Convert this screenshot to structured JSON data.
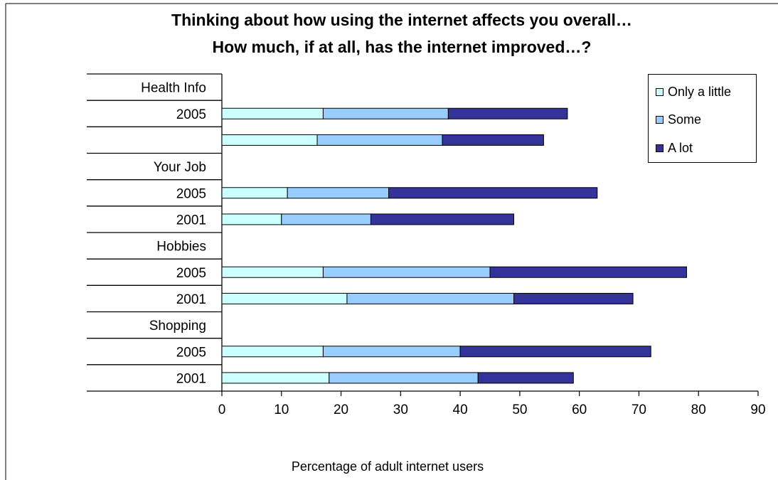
{
  "chart_data": {
    "type": "bar",
    "orientation": "horizontal",
    "stacked": true,
    "title": "Thinking about how using the internet affects you overall…",
    "subtitle": "How much, if at all, has the internet improved…?",
    "xlabel": "Percentage of adult internet users",
    "xlim": [
      0,
      90
    ],
    "xticks": [
      0,
      10,
      20,
      30,
      40,
      50,
      60,
      70,
      80,
      90
    ],
    "grid": false,
    "legend_position": "top-right",
    "row_labels": [
      "Health Info",
      "2005",
      "",
      "Your Job",
      "2005",
      "2001",
      "Hobbies",
      "2005",
      "2001",
      "Shopping",
      "2005",
      "2001"
    ],
    "series": [
      {
        "name": "Only a little",
        "color": "#ccffff",
        "values": [
          null,
          17,
          16,
          null,
          11,
          10,
          null,
          17,
          21,
          null,
          17,
          18
        ]
      },
      {
        "name": "Some",
        "color": "#99ccff",
        "values": [
          null,
          21,
          21,
          null,
          17,
          15,
          null,
          28,
          28,
          null,
          23,
          25
        ]
      },
      {
        "name": "A lot",
        "color": "#333399",
        "values": [
          null,
          20,
          17,
          null,
          35,
          24,
          null,
          33,
          20,
          null,
          32,
          16
        ]
      }
    ]
  }
}
